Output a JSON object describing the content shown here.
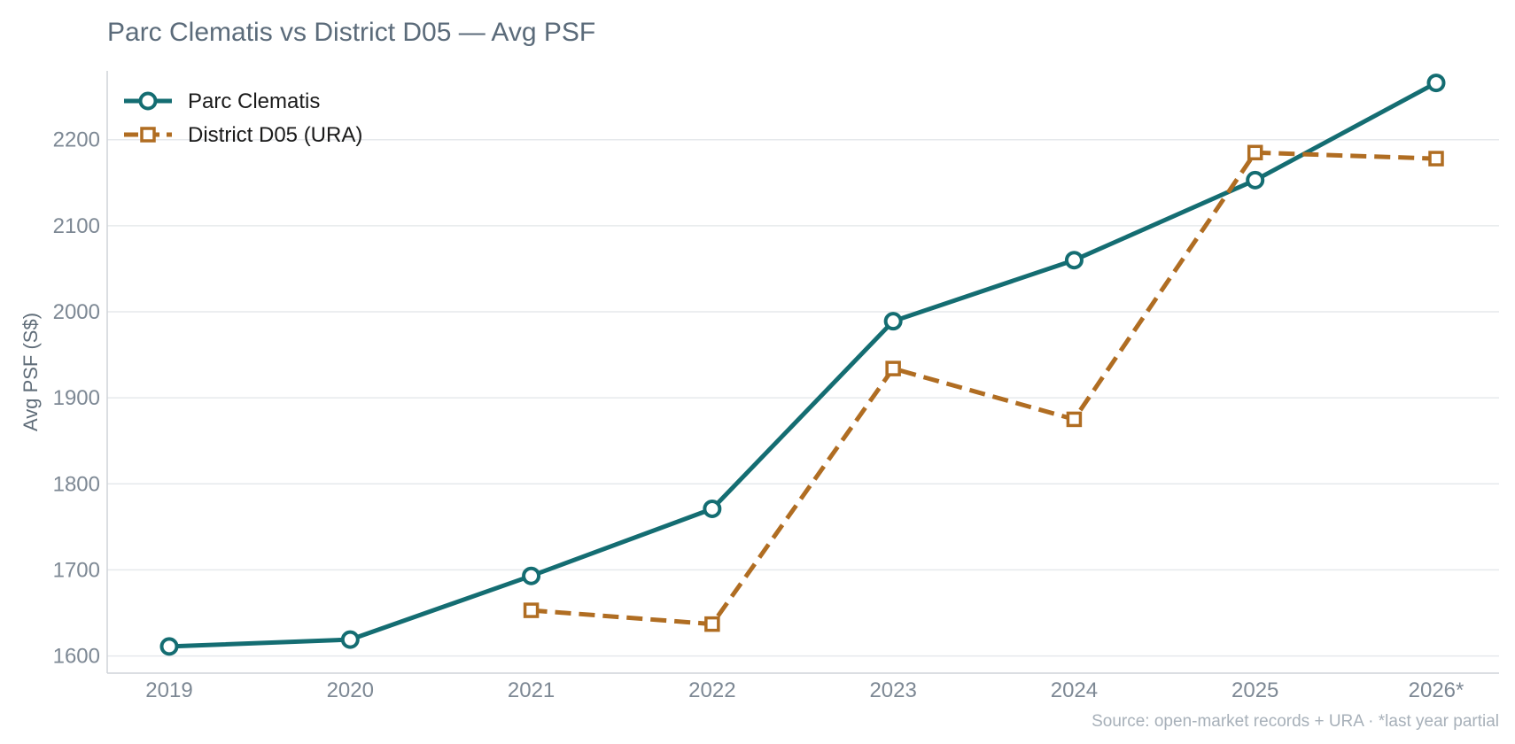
{
  "chart_data": {
    "type": "line",
    "title": "Parc Clematis vs District D05 — Avg PSF",
    "ylabel": "Avg PSF (S$)",
    "xlabel": "",
    "categories": [
      "2019",
      "2020",
      "2021",
      "2022",
      "2023",
      "2024",
      "2025",
      "2026*"
    ],
    "ylim": [
      1580,
      2280
    ],
    "yticks": [
      1600,
      1700,
      1800,
      1900,
      2000,
      2100,
      2200
    ],
    "grid": "horizontal",
    "legend_position": "top-left",
    "series": [
      {
        "name": "Parc Clematis",
        "color": "#146d72",
        "marker": "circle",
        "line_style": "solid",
        "values": [
          1611,
          1619,
          1693,
          1771,
          1989,
          2060,
          2153,
          2266
        ]
      },
      {
        "name": "District D05 (URA)",
        "color": "#b06d22",
        "marker": "square",
        "line_style": "dashed",
        "values": [
          null,
          null,
          1653,
          1637,
          1934,
          1875,
          2185,
          2178
        ]
      }
    ],
    "source_note": "Source: open-market records + URA · *last year partial"
  }
}
